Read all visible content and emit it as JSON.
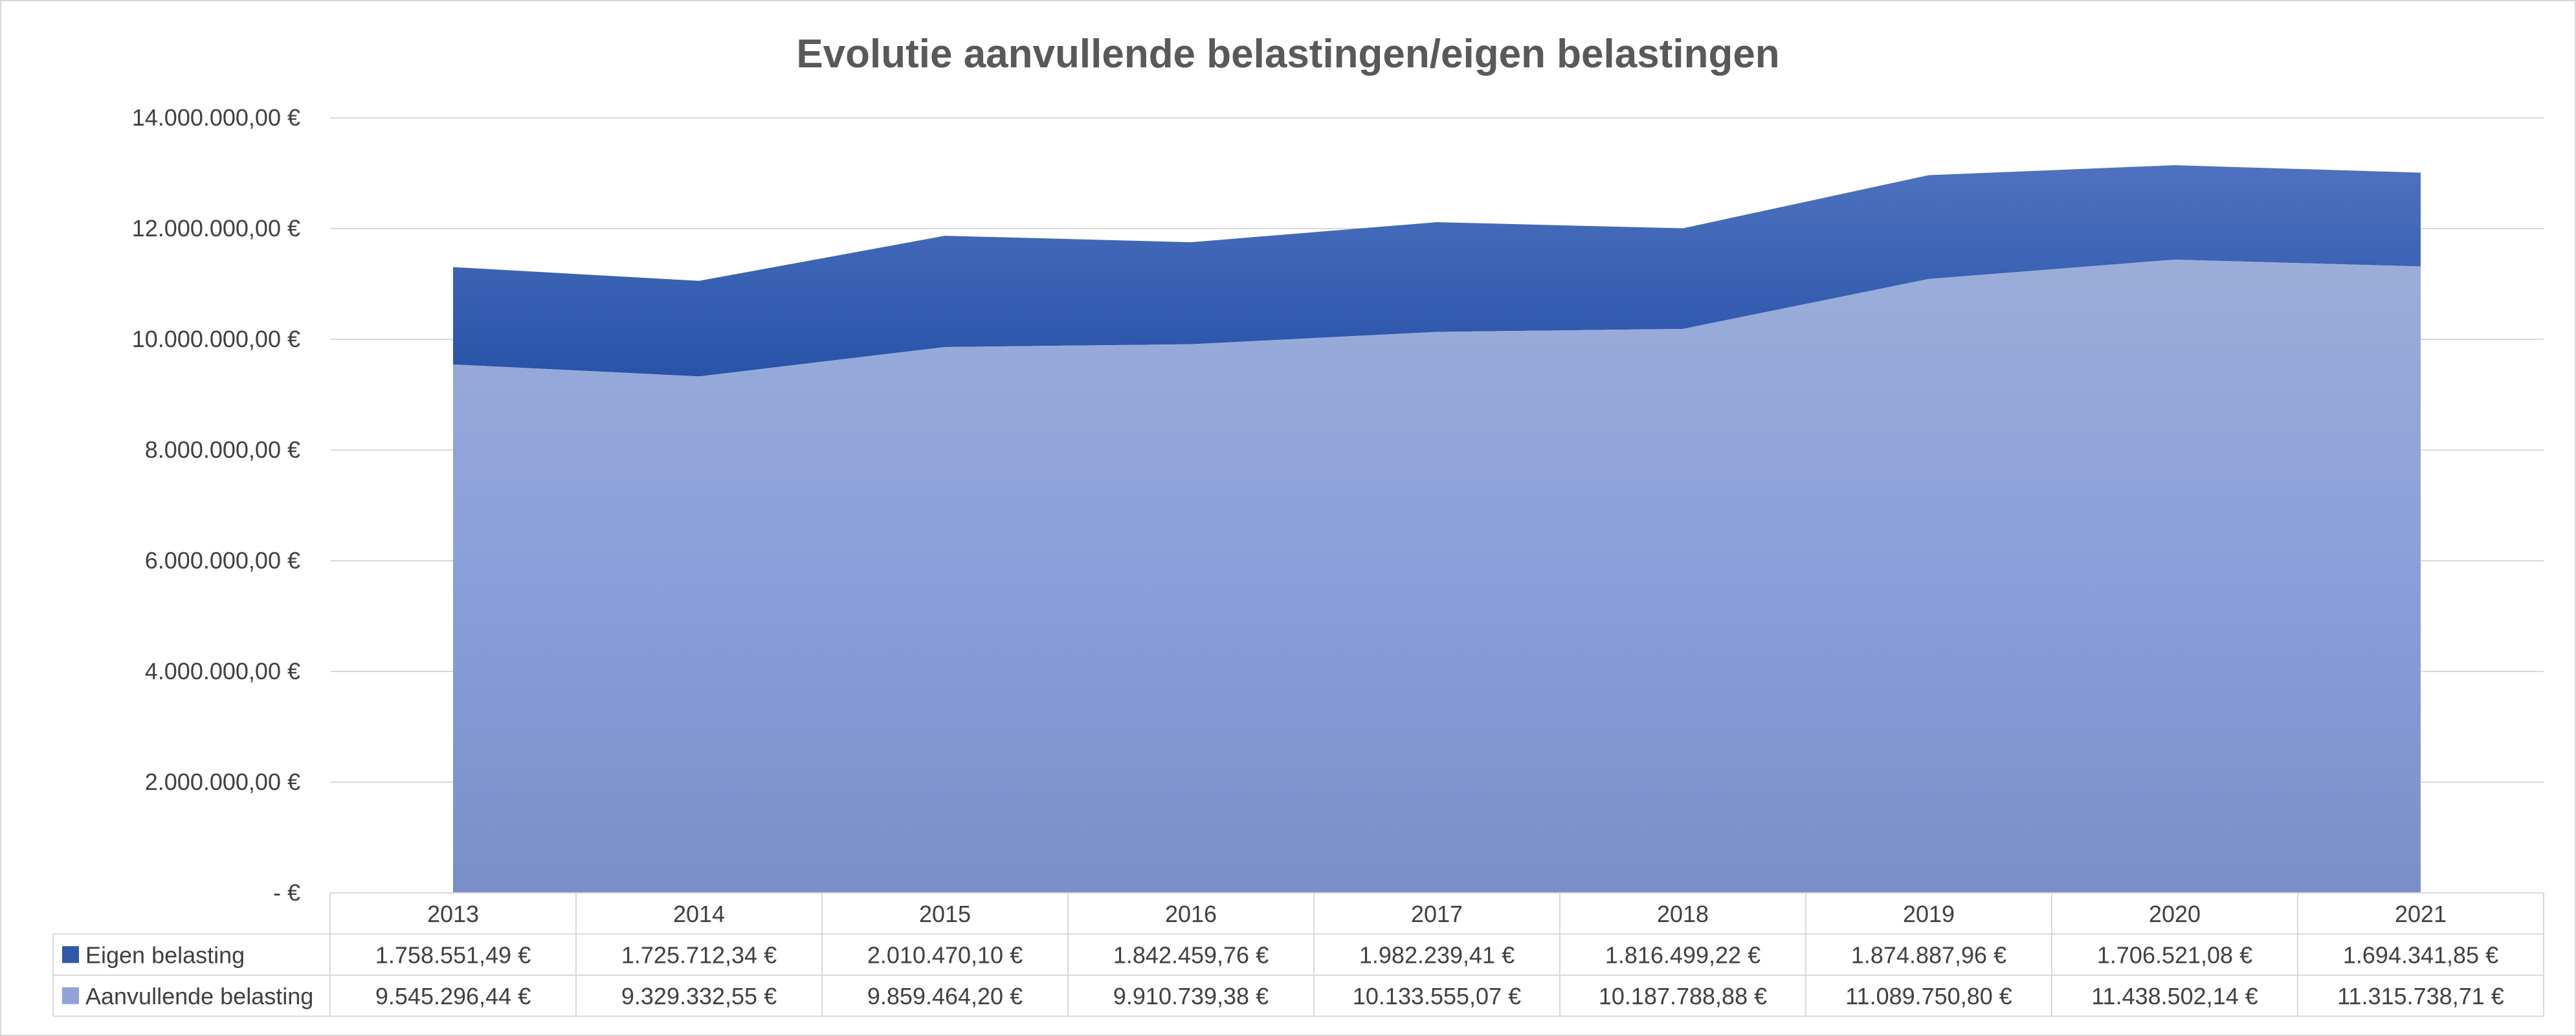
{
  "chart_data": {
    "type": "area",
    "stacked": true,
    "title": "Evolutie aanvullende belastingen/eigen belastingen",
    "categories": [
      "2013",
      "2014",
      "2015",
      "2016",
      "2017",
      "2018",
      "2019",
      "2020",
      "2021"
    ],
    "series": [
      {
        "name": "Eigen belasting",
        "color": "#2e59ad",
        "values": [
          1758551.49,
          1725712.34,
          2010470.1,
          1842459.76,
          1982239.41,
          1816499.22,
          1874887.96,
          1706521.08,
          1694341.85
        ],
        "labels": [
          "1.758.551,49 €",
          "1.725.712,34 €",
          "2.010.470,10 €",
          "1.842.459,76 €",
          "1.982.239,41 €",
          "1.816.499,22 €",
          "1.874.887,96 €",
          "1.706.521,08 €",
          "1.694.341,85 €"
        ]
      },
      {
        "name": "Aanvullende belasting",
        "color": "#8fa2d9",
        "values": [
          9545296.44,
          9329332.55,
          9859464.2,
          9910739.38,
          10133555.07,
          10187788.88,
          11089750.8,
          11438502.14,
          11315738.71
        ],
        "labels": [
          "9.545.296,44 €",
          "9.329.332,55 €",
          "9.859.464,20 €",
          "9.910.739,38 €",
          "10.133.555,07 €",
          "10.187.788,88 €",
          "11.089.750,80 €",
          "11.438.502,14 €",
          "11.315.738,71 €"
        ]
      }
    ],
    "stack_order": [
      "Aanvullende belasting",
      "Eigen belasting"
    ],
    "ylim": [
      0,
      14000000
    ],
    "yticks": [
      0,
      2000000,
      4000000,
      6000000,
      8000000,
      10000000,
      12000000,
      14000000
    ],
    "ytick_labels": [
      "-  €",
      "2.000.000,00 €",
      "4.000.000,00 €",
      "6.000.000,00 €",
      "8.000.000,00 €",
      "10.000.000,00 €",
      "12.000.000,00 €",
      "14.000.000,00 €"
    ],
    "grid": true,
    "legend": "data-table",
    "data_table": true
  }
}
